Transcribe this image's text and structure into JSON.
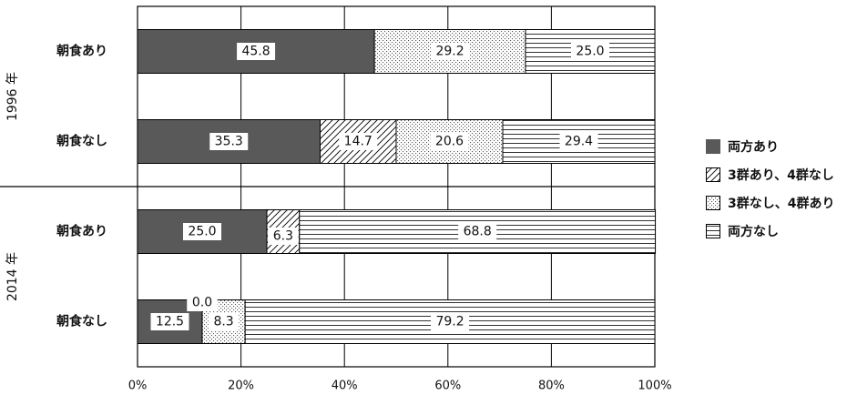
{
  "chart_data": {
    "type": "bar",
    "orientation": "horizontal",
    "stacked": true,
    "xlim": [
      0,
      100
    ],
    "x_ticks": [
      "0%",
      "20%",
      "40%",
      "60%",
      "80%",
      "100%"
    ],
    "grid": true,
    "legend_position": "right",
    "groups": [
      {
        "label": "1996 年",
        "categories": [
          "朝食あり",
          "朝食なし"
        ]
      },
      {
        "label": "2014 年",
        "categories": [
          "朝食あり",
          "朝食なし"
        ]
      }
    ],
    "categories": [
      "朝食あり",
      "朝食なし",
      "朝食あり",
      "朝食なし"
    ],
    "series": [
      {
        "name": "両方あり",
        "values": [
          45.8,
          35.3,
          25.0,
          12.5
        ],
        "labels": [
          "45.8",
          "35.3",
          "25.0",
          "12.5"
        ]
      },
      {
        "name": "3群あり、4群なし",
        "values": [
          0,
          14.7,
          6.3,
          0.0
        ],
        "labels": [
          "",
          "14.7",
          "6.3",
          "0.0"
        ]
      },
      {
        "name": "3群なし、4群あり",
        "values": [
          29.2,
          20.6,
          0,
          8.3
        ],
        "labels": [
          "29.2",
          "20.6",
          "",
          "8.3"
        ]
      },
      {
        "name": "両方なし",
        "values": [
          25.0,
          29.4,
          68.8,
          79.2
        ],
        "labels": [
          "25.0",
          "29.4",
          "68.8",
          "79.2"
        ]
      }
    ]
  },
  "legend_patterns": [
    "solid",
    "diagonal",
    "dotted",
    "horizontal"
  ],
  "colors": {
    "solid_fill": "#595959",
    "line": "#000000",
    "label_box": "#ffffff"
  }
}
